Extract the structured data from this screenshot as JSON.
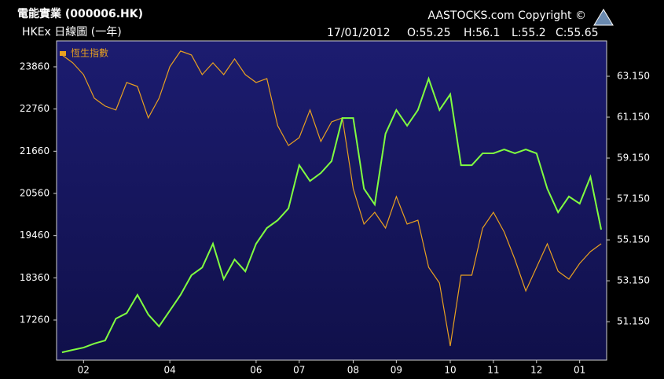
{
  "chart_data": {
    "type": "line",
    "title": "電能實業 (000006.HK)",
    "subtitle": "HKEx 日線圖 (一年)",
    "copyright": "AASTOCKS.com Copyright ©",
    "date": "17/01/2012",
    "ohlc": [
      "O:55.25",
      "H:56.1",
      "L:55.2",
      "C:55.65"
    ],
    "categories": [
      null,
      null,
      "02",
      null,
      null,
      null,
      null,
      null,
      null,
      null,
      "04",
      null,
      null,
      null,
      null,
      null,
      null,
      null,
      "06",
      null,
      null,
      null,
      "07",
      null,
      null,
      null,
      null,
      "08",
      null,
      null,
      null,
      "09",
      null,
      null,
      null,
      null,
      "10",
      null,
      null,
      null,
      "11",
      null,
      null,
      null,
      "12",
      null,
      null,
      null,
      "01",
      null,
      null
    ],
    "series": [
      {
        "name": "恆生指數",
        "color": "#e8a020",
        "axis": "y",
        "values": [
          24169,
          23964,
          23656,
          23041,
          22836,
          22734,
          23451,
          23349,
          22529,
          23041,
          23861,
          24271,
          24169,
          23656,
          23964,
          23656,
          24066,
          23656,
          23451,
          23554,
          22324,
          21811,
          22016,
          22734,
          21914,
          22426,
          22529,
          20683,
          19761,
          20069,
          19659,
          20479,
          19761,
          19864,
          18634,
          18224,
          16584,
          18429,
          18429,
          19659,
          20069,
          19556,
          18839,
          18019,
          18634,
          19249,
          18531,
          18326,
          18736,
          19044,
          19249
        ]
      },
      {
        "color": "#80ff40",
        "axis": "y2",
        "values": [
          49.65,
          49.77,
          49.88,
          50.08,
          50.23,
          51.3,
          51.57,
          52.46,
          51.5,
          50.92,
          51.69,
          52.46,
          53.42,
          53.8,
          54.96,
          53.23,
          54.19,
          53.61,
          54.96,
          55.73,
          56.11,
          56.69,
          58.8,
          58.03,
          58.42,
          59.0,
          61.11,
          61.11,
          57.65,
          56.88,
          60.34,
          61.5,
          60.73,
          61.5,
          63.03,
          61.5,
          62.27,
          58.8,
          58.8,
          59.38,
          59.38,
          59.57,
          59.38,
          59.57,
          59.38,
          57.65,
          56.5,
          57.27,
          56.92,
          58.23,
          55.65
        ]
      }
    ],
    "ylim": [
      16215,
      24536
    ],
    "yticks": [
      17260,
      18360,
      19460,
      20560,
      21660,
      22760,
      23860
    ],
    "y2lim": [
      49.27,
      64.88
    ],
    "y2ticks": [
      {
        "value": 51.15,
        "label": "51.150"
      },
      {
        "value": 53.15,
        "label": "53.150"
      },
      {
        "value": 55.15,
        "label": "55.150"
      },
      {
        "value": 57.15,
        "label": "57.150"
      },
      {
        "value": 59.15,
        "label": "59.150"
      },
      {
        "value": 61.15,
        "label": "61.150"
      },
      {
        "value": 63.15,
        "label": "63.150"
      }
    ],
    "legend": "top-left"
  }
}
